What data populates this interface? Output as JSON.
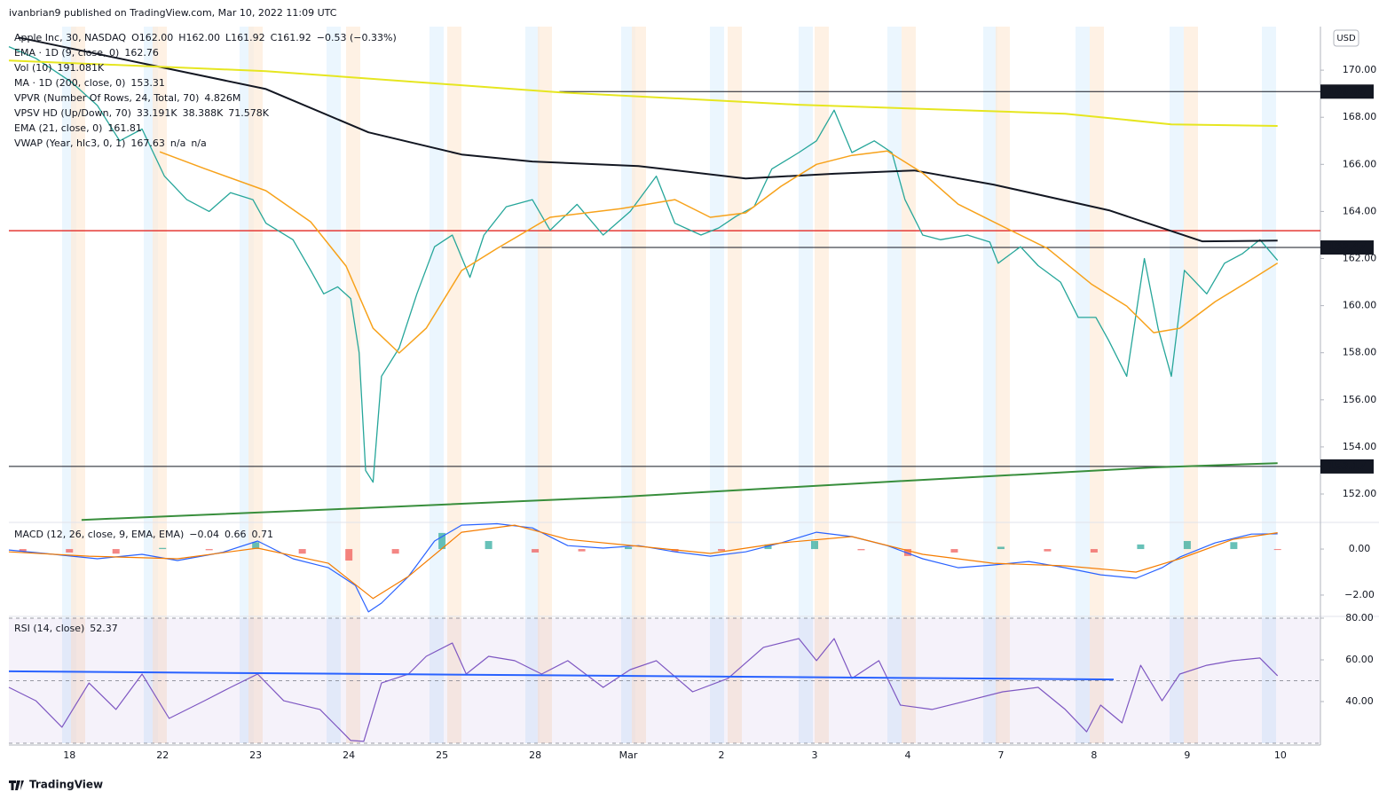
{
  "header": {
    "published": "ivanbrian9 published on TradingView.com, Mar 10, 2022 11:09 UTC",
    "footer": "TradingView",
    "currency": "USD"
  },
  "chart_data": [
    {
      "type": "line",
      "title": "Apple Inc, 30, NASDAQ",
      "legend": [
        {
          "label": "Apple Inc, 30, NASDAQ",
          "values": [
            "O162.00",
            "H162.00",
            "L161.92",
            "C161.92",
            "−0.53 (−0.33%)"
          ],
          "colors": [
            "#ef5350",
            "#ef5350",
            "#ef5350",
            "#ef5350",
            "#ef5350"
          ]
        },
        {
          "label": "EMA · 1D (9, close, 0)",
          "values": [
            "162.76"
          ],
          "colors": [
            "#131722"
          ]
        },
        {
          "label": "Vol (10)",
          "values": [
            "191.081K"
          ],
          "colors": [
            "#e6b800"
          ]
        },
        {
          "label": "MA · 1D (200, close, 0)",
          "values": [
            "153.31"
          ],
          "colors": [
            "#388e3c"
          ]
        },
        {
          "label": "VPVR (Number Of Rows, 24, Total, 70)",
          "values": [
            "4.826M"
          ],
          "colors": [
            "#b0bec5"
          ]
        },
        {
          "label": "VPSV HD (Up/Down, 70)",
          "values": [
            "33.191K",
            "38.388K",
            "71.578K"
          ],
          "colors": [
            "#2196f3",
            "#e6b800",
            "#131722"
          ]
        },
        {
          "label": "EMA (21, close, 0)",
          "values": [
            "161.81"
          ],
          "colors": [
            "#f7a21b"
          ]
        },
        {
          "label": "VWAP (Year, hlc3, 0, 1)",
          "values": [
            "167.63",
            "n/a",
            "n/a"
          ],
          "colors": [
            "#e6d600",
            "#131722",
            "#131722"
          ]
        }
      ],
      "xlim": [
        -0.65,
        13.43
      ],
      "xticks": [
        {
          "value": 0,
          "label": "18"
        },
        {
          "value": 1,
          "label": "22"
        },
        {
          "value": 2,
          "label": "23"
        },
        {
          "value": 3,
          "label": "24"
        },
        {
          "value": 4,
          "label": "25"
        },
        {
          "value": 5,
          "label": "28"
        },
        {
          "value": 6,
          "label": "Mar"
        },
        {
          "value": 7,
          "label": "2"
        },
        {
          "value": 8,
          "label": "3"
        },
        {
          "value": 9,
          "label": "4"
        },
        {
          "value": 10,
          "label": "7"
        },
        {
          "value": 11,
          "label": "8"
        },
        {
          "value": 12,
          "label": "9"
        },
        {
          "value": 13,
          "label": "10"
        }
      ],
      "ylim": [
        150.87,
        171.85
      ],
      "yticks": [
        {
          "value": 152,
          "label": "152.00"
        },
        {
          "value": 154,
          "label": "154.00"
        },
        {
          "value": 156,
          "label": "156.00"
        },
        {
          "value": 158,
          "label": "158.00"
        },
        {
          "value": 160,
          "label": "160.00"
        },
        {
          "value": 162,
          "label": "162.00"
        },
        {
          "value": 164,
          "label": "164.00"
        },
        {
          "value": 166,
          "label": "166.00"
        },
        {
          "value": 168,
          "label": "168.00"
        },
        {
          "value": 170,
          "label": "170.00"
        }
      ],
      "series": [
        {
          "color": "#26a69a",
          "width": 1.3,
          "x": [
            -0.65,
            -0.36,
            0.02,
            0.3,
            0.54,
            0.78,
            1.02,
            1.26,
            1.5,
            1.73,
            1.97,
            2.11,
            2.4,
            2.59,
            2.73,
            2.88,
            3.02,
            3.11,
            3.18,
            3.26,
            3.35,
            3.54,
            3.73,
            3.92,
            4.11,
            4.3,
            4.45,
            4.69,
            4.97,
            5.16,
            5.45,
            5.73,
            6.02,
            6.3,
            6.5,
            6.78,
            6.97,
            7.16,
            7.35,
            7.54,
            7.83,
            8.02,
            8.21,
            8.4,
            8.64,
            8.83,
            8.97,
            9.16,
            9.35,
            9.64,
            9.88,
            9.97,
            10.21,
            10.4,
            10.64,
            10.83,
            11.02,
            11.16,
            11.35,
            11.54,
            11.69,
            11.83,
            11.97,
            12.21,
            12.4,
            12.59,
            12.78,
            12.97
          ],
          "values": [
            171.0,
            170.5,
            169.5,
            168.5,
            167.0,
            167.5,
            165.5,
            164.5,
            164.0,
            164.8,
            164.5,
            163.5,
            162.8,
            161.5,
            160.5,
            160.8,
            160.3,
            158.0,
            153.0,
            152.5,
            157.0,
            158.2,
            160.5,
            162.5,
            163.0,
            161.2,
            163.0,
            164.2,
            164.5,
            163.2,
            164.3,
            163.0,
            164.0,
            165.5,
            163.5,
            163.0,
            163.3,
            163.8,
            164.2,
            165.8,
            166.5,
            167.0,
            168.3,
            166.5,
            167.0,
            166.5,
            164.5,
            163.0,
            162.8,
            163.0,
            162.7,
            161.8,
            162.5,
            161.7,
            161.0,
            159.5,
            159.5,
            158.5,
            157.0,
            162.0,
            159.0,
            157.0,
            161.5,
            160.5,
            161.8,
            162.2,
            162.8,
            161.92
          ]
        },
        {
          "color": "#131722",
          "width": 2,
          "x": [
            -0.55,
            2.11,
            3.21,
            4.21,
            4.97,
            6.11,
            7.26,
            8.21,
            9.07,
            9.92,
            11.16,
            12.16,
            12.97
          ],
          "values": [
            171.39,
            169.2,
            167.36,
            166.42,
            166.12,
            165.93,
            165.4,
            165.6,
            165.74,
            165.14,
            164.05,
            162.73,
            162.76
          ]
        },
        {
          "color": "#e6e620",
          "width": 2,
          "x": [
            -0.65,
            2.11,
            5.26,
            7.83,
            10.69,
            11.83,
            12.97
          ],
          "values": [
            170.41,
            169.96,
            169.06,
            168.53,
            168.15,
            167.7,
            167.63
          ]
        },
        {
          "color": "#388e3c",
          "width": 2,
          "x": [
            0.13,
            3.07,
            5.92,
            8.78,
            11.64,
            12.97
          ],
          "values": [
            150.9,
            151.39,
            151.88,
            152.52,
            153.13,
            153.31
          ]
        },
        {
          "color": "#f7a21b",
          "width": 1.5,
          "x": [
            0.97,
            1.45,
            2.11,
            2.59,
            2.97,
            3.26,
            3.54,
            3.83,
            4.21,
            4.59,
            5.16,
            5.92,
            6.5,
            6.88,
            7.26,
            7.64,
            8.02,
            8.4,
            8.78,
            9.16,
            9.54,
            9.92,
            10.5,
            10.97,
            11.35,
            11.64,
            11.92,
            12.3,
            12.69,
            12.97
          ],
          "values": [
            166.53,
            165.82,
            164.88,
            163.56,
            161.68,
            159.04,
            157.99,
            159.04,
            161.49,
            162.43,
            163.75,
            164.12,
            164.5,
            163.75,
            163.94,
            165.07,
            166.0,
            166.38,
            166.57,
            165.63,
            164.31,
            163.56,
            162.43,
            160.92,
            159.98,
            158.85,
            159.04,
            160.17,
            161.11,
            161.81
          ]
        }
      ],
      "hlines": [
        {
          "value": 169.09,
          "label": "169.09",
          "color": "#131722",
          "xstart": 5.26
        },
        {
          "value": 163.18,
          "color": "#e53935",
          "xstart": -0.65
        },
        {
          "value": 162.47,
          "label": "162.47",
          "color": "#131722",
          "xstart": 4.64
        },
        {
          "value": 153.17,
          "label": "153.17",
          "color": "#131722",
          "xstart": -0.65
        }
      ]
    },
    {
      "type": "macd",
      "title": "MACD (12, 26, close, 9, EMA, EMA)",
      "legend_values": [
        "−0.04",
        "0.66",
        "0.71"
      ],
      "legend_colors": [
        "#ef5350",
        "#2962ff",
        "#f57c00"
      ],
      "ylim": [
        -2.85,
        1.12
      ],
      "yticks": [
        {
          "value": -2,
          "label": "−2.00"
        },
        {
          "value": 0,
          "label": "0.00"
        }
      ],
      "histogram": {
        "up_color": "#26a69a",
        "down_color": "#ef5350",
        "x": [
          -0.5,
          0,
          0.5,
          1,
          1.5,
          2,
          2.5,
          3,
          3.5,
          4,
          4.5,
          5,
          5.5,
          6,
          6.5,
          7,
          7.5,
          8,
          8.5,
          9,
          9.5,
          10,
          10.5,
          11,
          11.5,
          12,
          12.5,
          12.97
        ],
        "values": [
          -0.1,
          -0.15,
          -0.2,
          0.05,
          -0.05,
          0.3,
          -0.2,
          -0.5,
          -0.2,
          0.7,
          0.35,
          -0.15,
          -0.1,
          0.08,
          -0.12,
          -0.08,
          0.2,
          0.35,
          -0.05,
          -0.3,
          -0.15,
          0.1,
          -0.1,
          -0.15,
          0.2,
          0.35,
          0.3,
          -0.04
        ]
      },
      "series": [
        {
          "color": "#2962ff",
          "width": 1.2,
          "x": [
            -0.65,
            -0.17,
            0.3,
            0.78,
            1.16,
            1.64,
            2.02,
            2.4,
            2.78,
            3.07,
            3.21,
            3.35,
            3.64,
            3.92,
            4.21,
            4.59,
            4.97,
            5.35,
            5.73,
            6.11,
            6.5,
            6.88,
            7.26,
            7.64,
            8.02,
            8.4,
            8.78,
            9.16,
            9.54,
            9.92,
            10.3,
            10.69,
            11.07,
            11.45,
            11.73,
            11.92,
            12.3,
            12.69,
            12.97
          ],
          "values": [
            -0.04,
            -0.23,
            -0.42,
            -0.23,
            -0.5,
            -0.15,
            0.35,
            -0.42,
            -0.81,
            -1.58,
            -2.73,
            -2.35,
            -1.19,
            0.35,
            1.04,
            1.1,
            0.92,
            0.15,
            0.04,
            0.15,
            -0.12,
            -0.31,
            -0.12,
            0.27,
            0.73,
            0.54,
            0.15,
            -0.42,
            -0.81,
            -0.69,
            -0.54,
            -0.81,
            -1.12,
            -1.27,
            -0.81,
            -0.35,
            0.27,
            0.65,
            0.66
          ]
        },
        {
          "color": "#f57c00",
          "width": 1.2,
          "x": [
            -0.65,
            0.21,
            1.16,
            2.02,
            2.78,
            3.26,
            3.64,
            4.21,
            4.78,
            5.35,
            6.11,
            6.88,
            7.64,
            8.4,
            9.16,
            9.92,
            10.69,
            11.45,
            11.92,
            12.49,
            12.97
          ],
          "values": [
            -0.12,
            -0.31,
            -0.42,
            0.04,
            -0.62,
            -2.15,
            -1.19,
            0.73,
            1.04,
            0.42,
            0.12,
            -0.19,
            0.27,
            0.54,
            -0.23,
            -0.62,
            -0.73,
            -1.0,
            -0.42,
            0.42,
            0.71
          ]
        }
      ]
    },
    {
      "type": "rsi",
      "title": "RSI (14, close)",
      "legend_values": [
        "52.37"
      ],
      "legend_colors": [
        "#7e57c2"
      ],
      "ylim": [
        20,
        80
      ],
      "yticks": [
        {
          "value": 40,
          "label": "40.00"
        },
        {
          "value": 60,
          "label": "60.00"
        },
        {
          "value": 80,
          "label": "80.00"
        }
      ],
      "bands": [
        80,
        50,
        20
      ],
      "series": [
        {
          "color": "#7e57c2",
          "width": 1.2,
          "x": [
            -0.65,
            -0.36,
            -0.08,
            0.21,
            0.5,
            0.78,
            1.07,
            1.45,
            1.73,
            2.02,
            2.3,
            2.69,
            3.02,
            3.16,
            3.35,
            3.64,
            3.83,
            4.11,
            4.26,
            4.5,
            4.78,
            5.07,
            5.35,
            5.73,
            6.02,
            6.3,
            6.69,
            7.07,
            7.45,
            7.83,
            8.02,
            8.21,
            8.4,
            8.69,
            8.92,
            9.26,
            9.64,
            10.02,
            10.4,
            10.69,
            10.92,
            11.07,
            11.3,
            11.5,
            11.73,
            11.92,
            12.21,
            12.49,
            12.78,
            12.97
          ],
          "values": [
            46.8,
            40.4,
            27.7,
            48.9,
            36.2,
            53.2,
            31.9,
            40.4,
            46.8,
            53.2,
            40.4,
            36.2,
            21.3,
            20.9,
            48.9,
            53.2,
            61.7,
            68.1,
            53.2,
            61.7,
            59.6,
            53.2,
            59.6,
            46.8,
            55.3,
            59.6,
            44.7,
            51.1,
            66.0,
            70.2,
            59.6,
            70.2,
            51.1,
            59.6,
            38.3,
            36.2,
            40.4,
            44.7,
            46.8,
            36.2,
            25.5,
            38.3,
            29.8,
            57.4,
            40.4,
            53.2,
            57.4,
            59.6,
            60.9,
            52.37
          ]
        },
        {
          "color": "#2962ff",
          "width": 2,
          "x": [
            -0.65,
            11.21
          ],
          "values": [
            54.5,
            50.6
          ]
        }
      ]
    }
  ]
}
